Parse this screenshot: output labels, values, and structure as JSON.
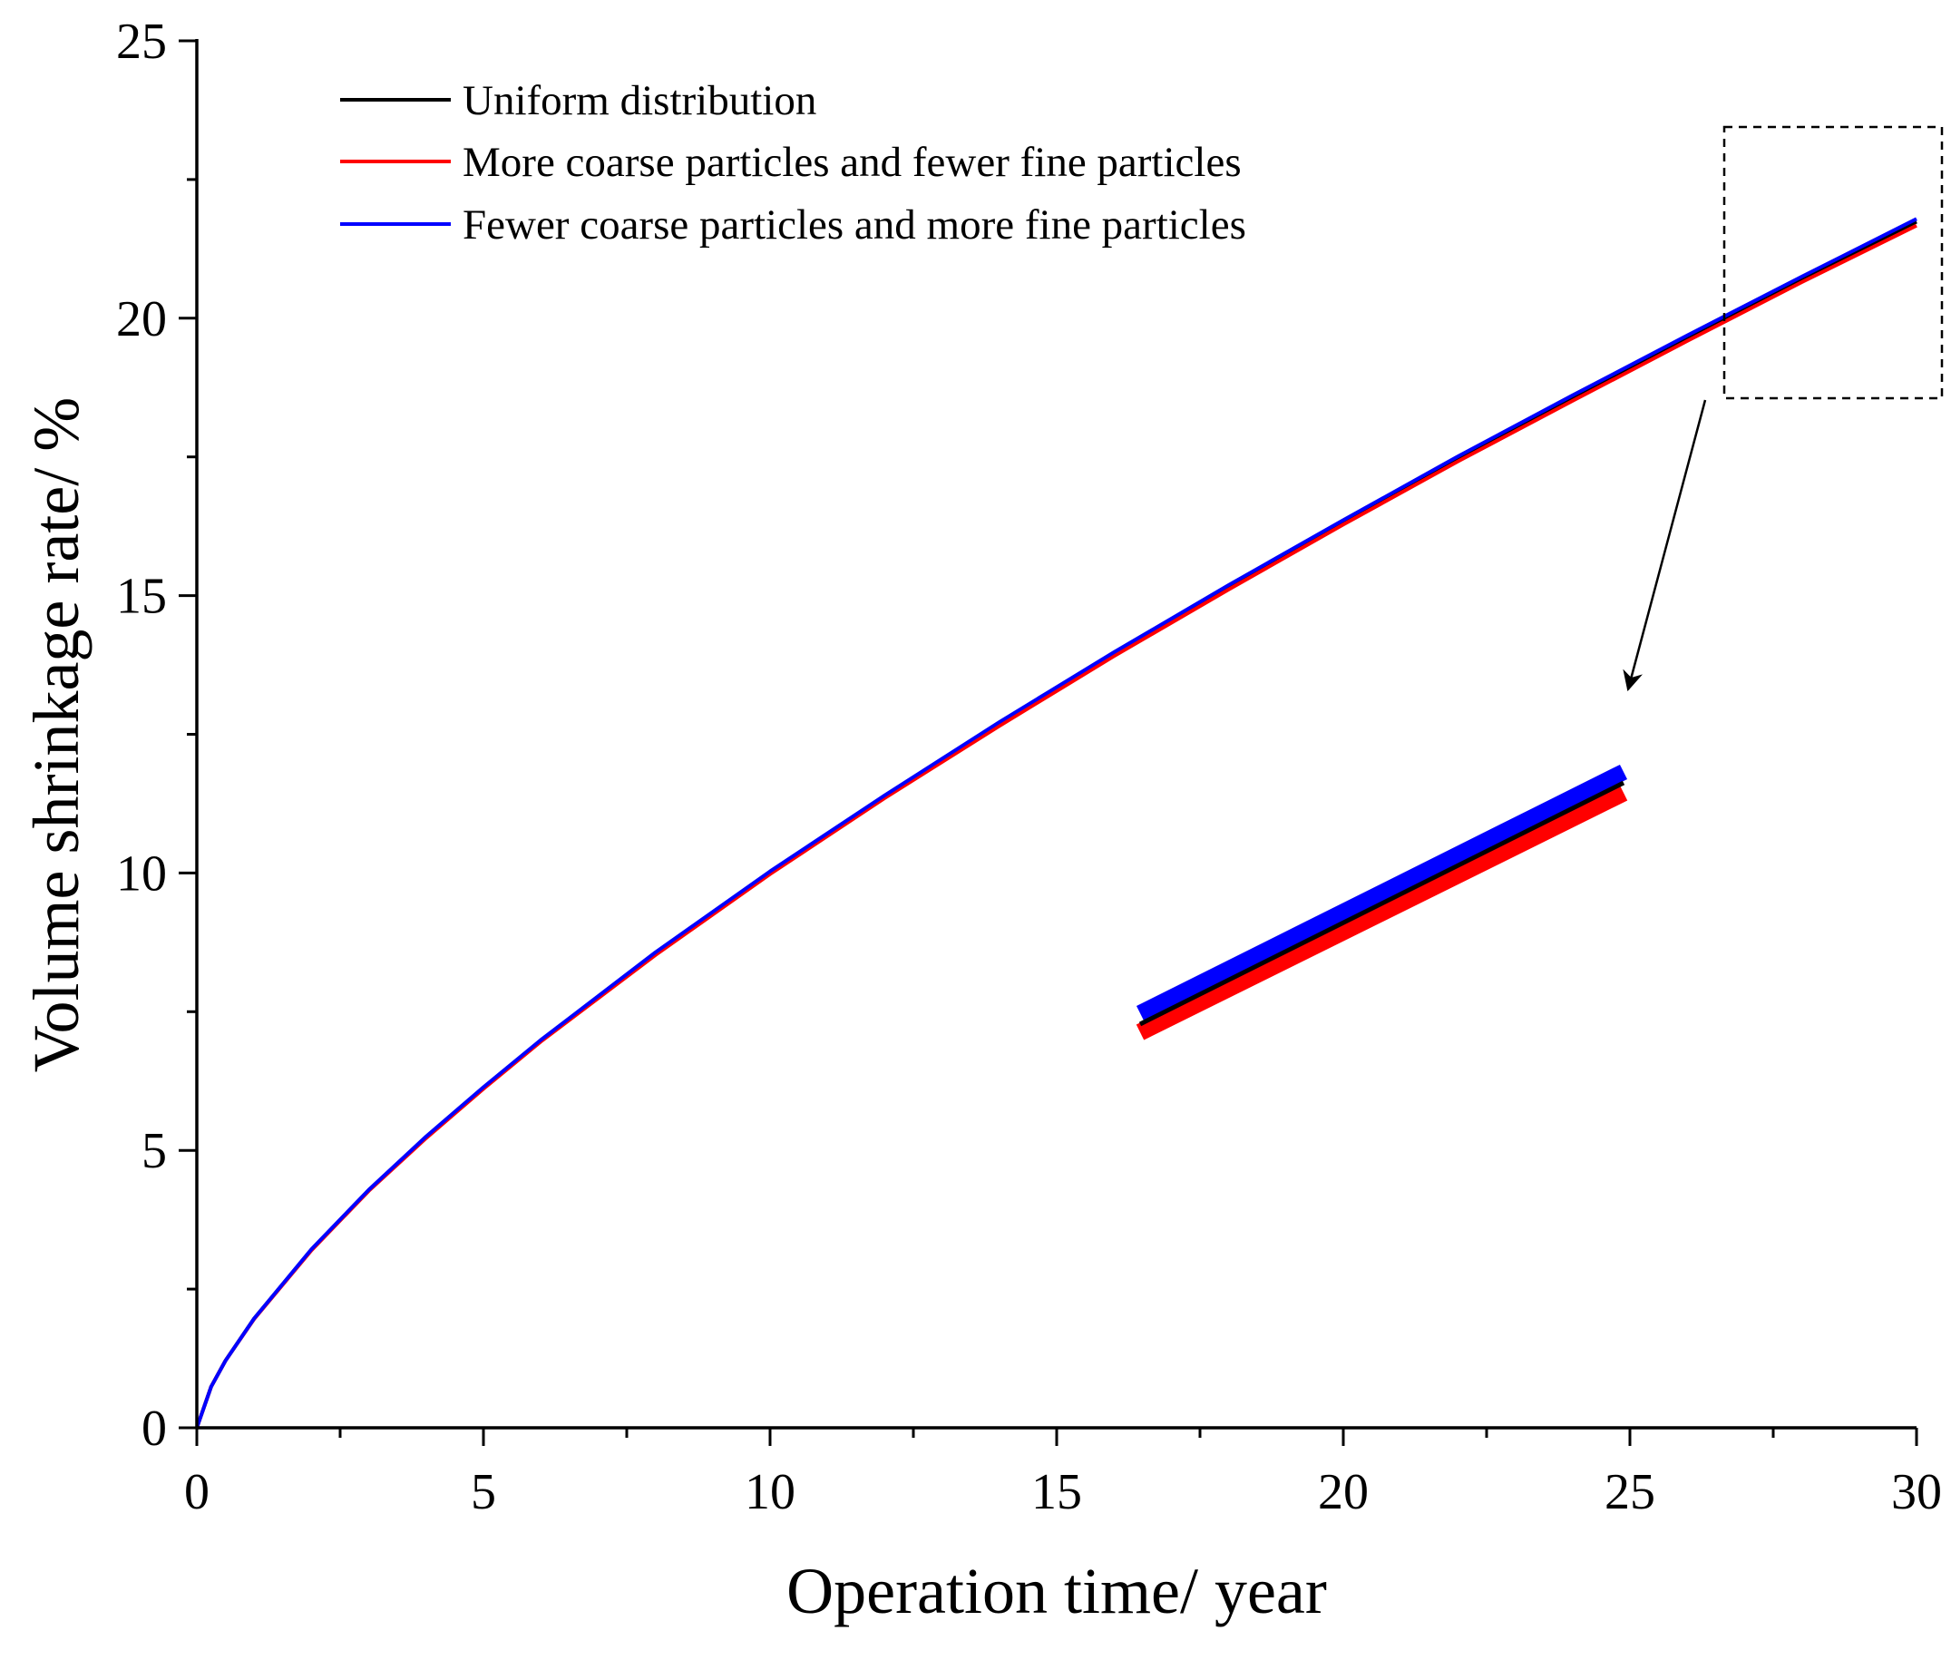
{
  "chart_data": {
    "type": "line",
    "title": "",
    "xlabel": "Operation time/ year",
    "ylabel": "Volume shrinkage rate/ %",
    "xlim": [
      0,
      30
    ],
    "ylim": [
      0,
      25
    ],
    "x_ticks": [
      0,
      5,
      10,
      15,
      20,
      25,
      30
    ],
    "y_ticks": [
      0,
      5,
      10,
      15,
      20,
      25
    ],
    "grid": false,
    "legend_position": "top-left",
    "x": [
      0,
      0.25,
      0.5,
      1,
      2,
      3,
      4,
      5,
      6,
      8,
      10,
      12,
      14,
      16,
      18,
      20,
      22,
      24,
      26,
      28,
      30
    ],
    "series": [
      {
        "name": "Uniform distribution",
        "color": "#000000",
        "values": [
          0,
          0.74,
          1.21,
          1.97,
          3.21,
          4.28,
          5.24,
          6.13,
          6.98,
          8.55,
          10.01,
          11.38,
          12.69,
          13.95,
          15.16,
          16.33,
          17.47,
          18.57,
          19.65,
          20.71,
          21.74
        ]
      },
      {
        "name": "More coarse particles and fewer fine particles",
        "color": "#ff0000",
        "values": [
          0,
          0.74,
          1.21,
          1.96,
          3.2,
          4.27,
          5.22,
          6.11,
          6.96,
          8.52,
          9.98,
          11.35,
          12.65,
          13.91,
          15.11,
          16.28,
          17.42,
          18.51,
          19.59,
          20.65,
          21.67
        ]
      },
      {
        "name": "Fewer coarse particles and more fine particles",
        "color": "#0000ff",
        "values": [
          0,
          0.74,
          1.21,
          1.97,
          3.22,
          4.29,
          5.25,
          6.14,
          6.99,
          8.57,
          10.03,
          11.4,
          12.72,
          13.98,
          15.19,
          16.36,
          17.51,
          18.61,
          19.69,
          20.75,
          21.79
        ]
      }
    ]
  }
}
